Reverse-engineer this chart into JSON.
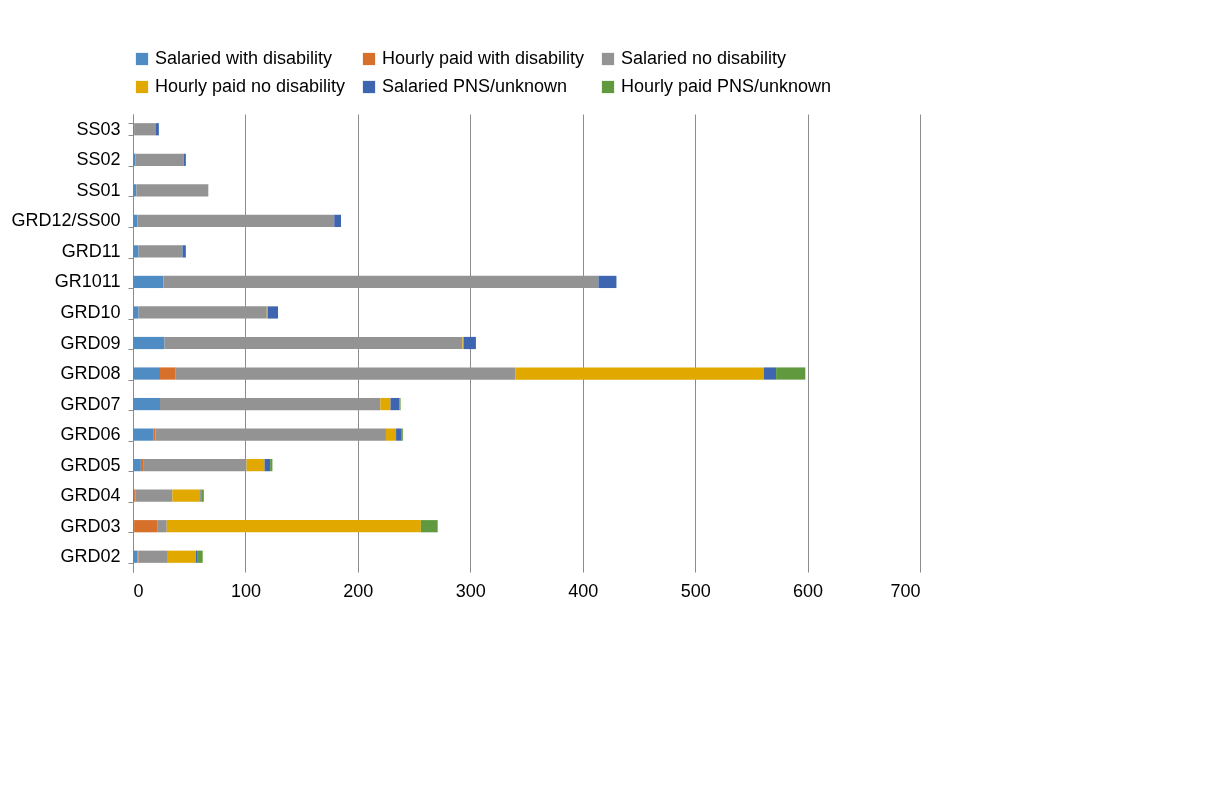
{
  "chart_data": {
    "type": "bar",
    "orientation": "horizontal",
    "stacked": true,
    "categories": [
      "SS03",
      "SS02",
      "SS01",
      "GRD12/SS00",
      "GRD11",
      "GR1011",
      "GRD10",
      "GRD09",
      "GRD08",
      "GRD07",
      "GRD06",
      "GRD05",
      "GRD04",
      "GRD03",
      "GRD02"
    ],
    "series": [
      {
        "name": "Salaried with disability",
        "color": "#4f8cc4",
        "values": [
          1,
          2,
          3,
          4,
          5,
          27,
          5,
          28,
          24,
          24,
          18,
          7,
          1,
          1,
          4
        ]
      },
      {
        "name": "Hourly paid with disability",
        "color": "#d6702a",
        "values": [
          0,
          0,
          0,
          0,
          0,
          0,
          0,
          0,
          14,
          0,
          2,
          2,
          1,
          21,
          1
        ]
      },
      {
        "name": "Salaried no disability",
        "color": "#939393",
        "values": [
          19,
          43,
          64,
          175,
          39,
          387,
          114,
          265,
          302,
          196,
          205,
          92,
          33,
          8,
          26
        ]
      },
      {
        "name": "Hourly paid no disability",
        "color": "#e1a900",
        "values": [
          0,
          0,
          0,
          0,
          0,
          0,
          1,
          1,
          221,
          9,
          9,
          16,
          25,
          226,
          25
        ]
      },
      {
        "name": "Salaried PNS/unknown",
        "color": "#3e66b0",
        "values": [
          3,
          2,
          0,
          6,
          3,
          16,
          9,
          11,
          11,
          8,
          5,
          5,
          1,
          0,
          1
        ]
      },
      {
        "name": "Hourly paid PNS/unknown",
        "color": "#619a3e",
        "values": [
          0,
          0,
          0,
          0,
          0,
          0,
          0,
          0,
          26,
          1,
          1,
          2,
          2,
          15,
          5
        ]
      }
    ],
    "xlim": [
      0,
      700
    ],
    "xticks": [
      0,
      100,
      200,
      300,
      400,
      500,
      600,
      700
    ],
    "grid": "x",
    "legend": "top"
  }
}
